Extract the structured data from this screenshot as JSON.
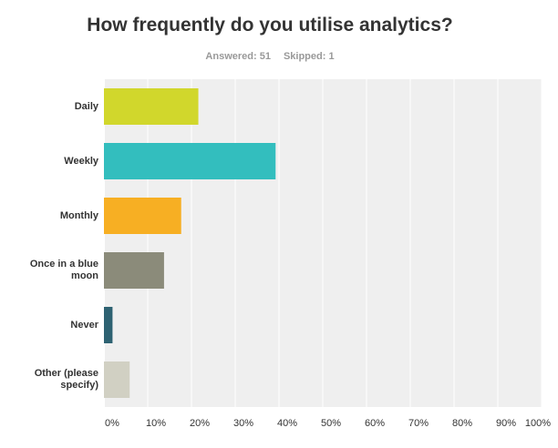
{
  "header": {
    "title": "How frequently do you utilise analytics?",
    "answered": "Answered: 51",
    "skipped": "Skipped: 1"
  },
  "chart_data": {
    "type": "bar",
    "orientation": "horizontal",
    "title": "How frequently do you utilise analytics?",
    "categories": [
      [
        "Daily"
      ],
      [
        "Weekly"
      ],
      [
        "Monthly"
      ],
      [
        "Once in a blue",
        "moon"
      ],
      [
        "Never"
      ],
      [
        "Other (please",
        "specify)"
      ]
    ],
    "values": [
      21.57,
      39.22,
      17.65,
      13.73,
      1.96,
      5.88
    ],
    "colors": [
      "#d1d72c",
      "#33bebe",
      "#f7af23",
      "#8b8b7a",
      "#2e6272",
      "#d1d0c3"
    ],
    "xlim": [
      0,
      100
    ],
    "xticks": [
      "0%",
      "10%",
      "20%",
      "30%",
      "40%",
      "50%",
      "60%",
      "70%",
      "80%",
      "90%",
      "100%"
    ],
    "grid": true
  }
}
